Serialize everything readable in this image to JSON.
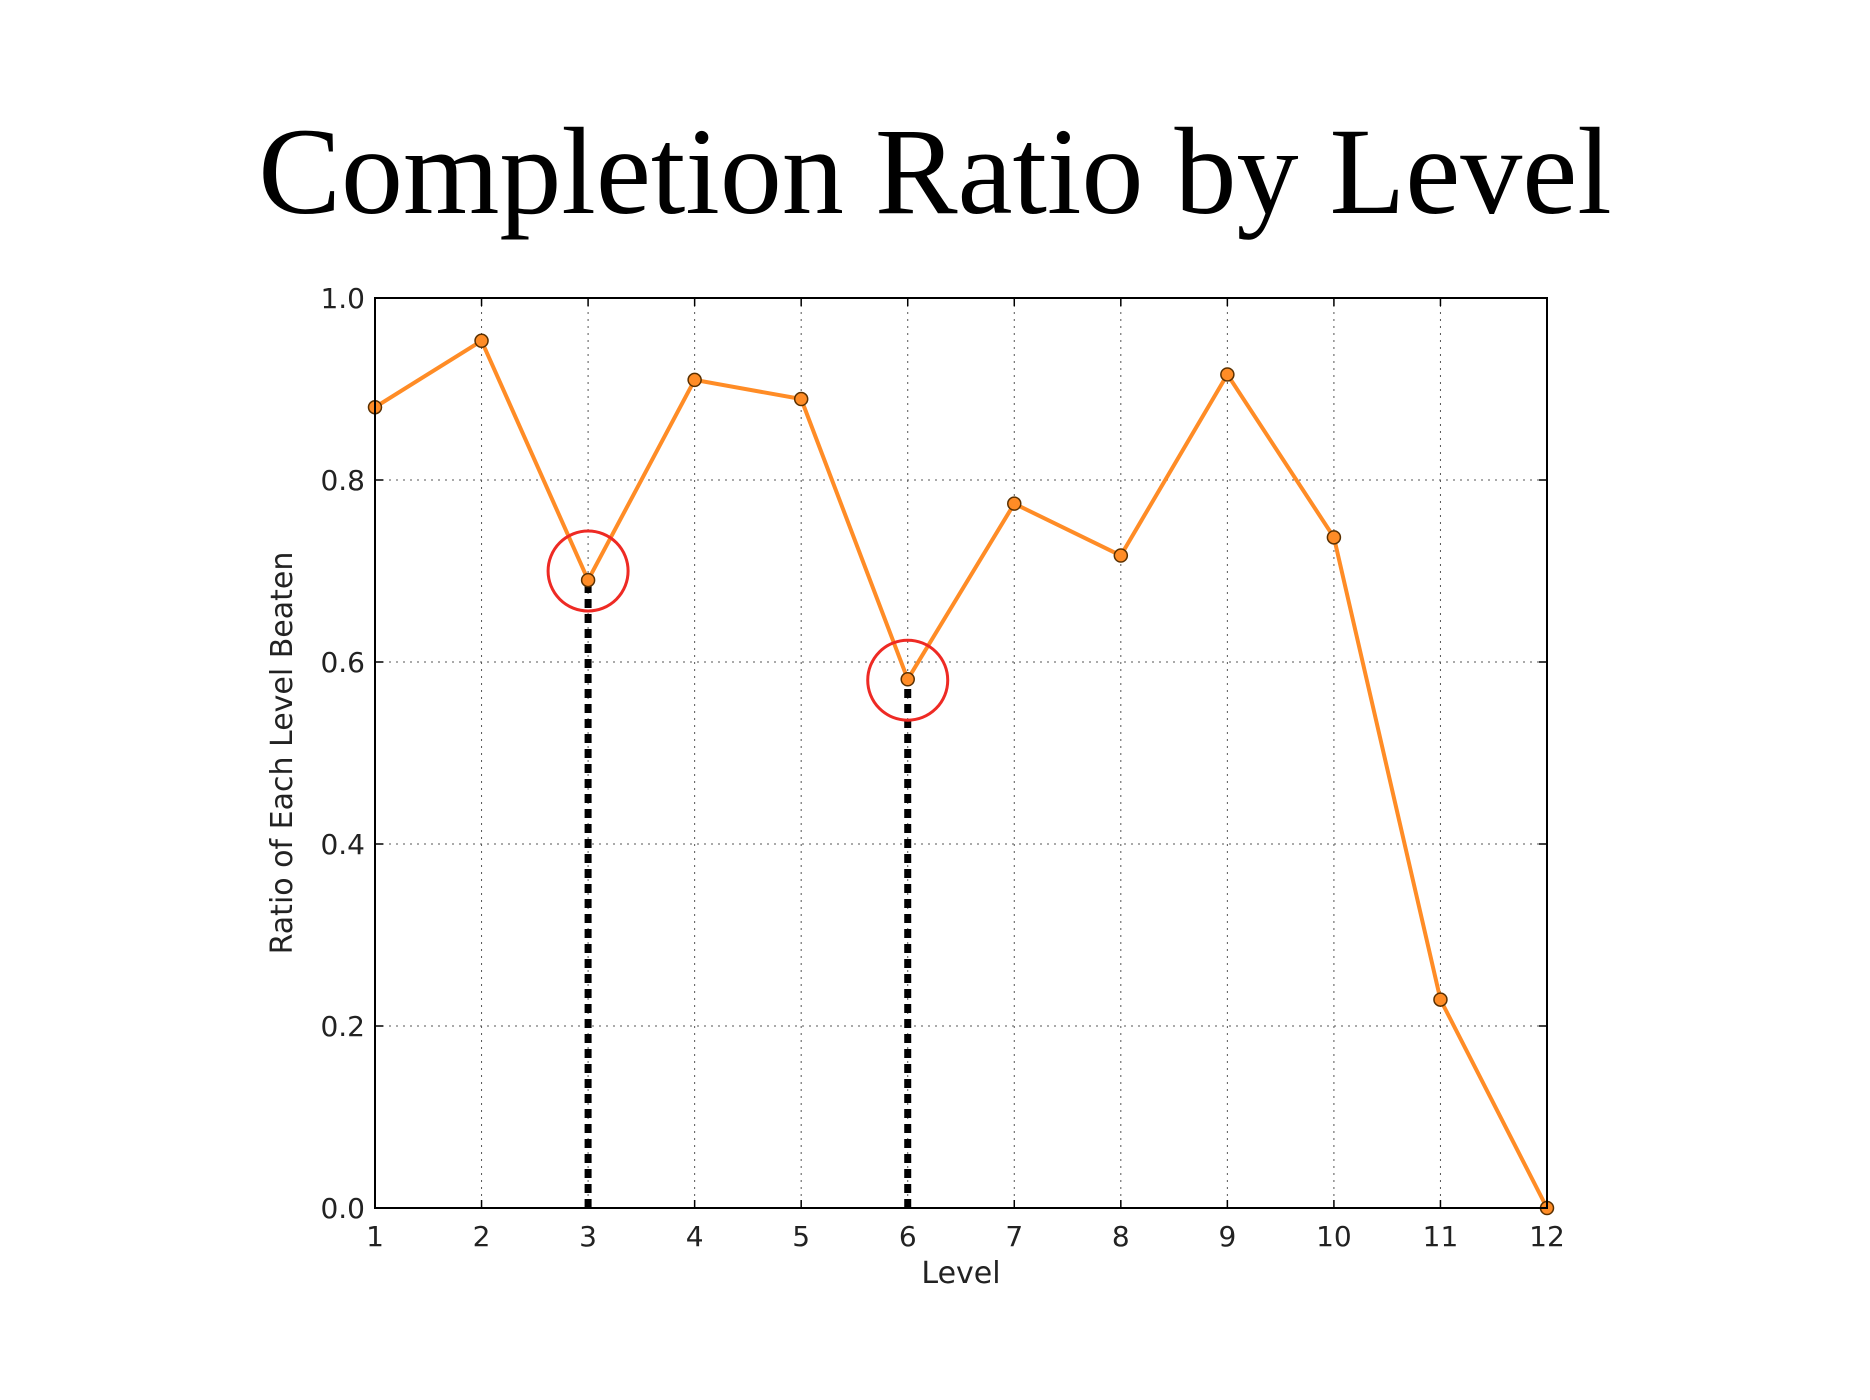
{
  "chart_data": {
    "type": "line",
    "title": "Completion Ratio by Level",
    "xlabel": "Level",
    "ylabel": "Ratio of Each Level Beaten",
    "xlim": [
      1,
      12
    ],
    "ylim": [
      0.0,
      1.0
    ],
    "x_ticks": [
      "1",
      "2",
      "3",
      "4",
      "5",
      "6",
      "7",
      "8",
      "9",
      "10",
      "11",
      "12"
    ],
    "y_ticks": [
      "0.0",
      "0.2",
      "0.4",
      "0.6",
      "0.8",
      "1.0"
    ],
    "grid": true,
    "series": [
      {
        "x": [
          1,
          2,
          3,
          4,
          5,
          6,
          7,
          8,
          9,
          10,
          11,
          12
        ],
        "values": [
          0.88,
          0.953,
          0.69,
          0.91,
          0.889,
          0.581,
          0.774,
          0.717,
          0.916,
          0.737,
          0.229,
          0.0
        ],
        "color": "#ff8c26",
        "marker_edge": "#5a3000"
      }
    ],
    "annotations": [
      {
        "type": "circle",
        "x": 3,
        "y": 0.7,
        "color": "#ee2a24"
      },
      {
        "type": "circle",
        "x": 6,
        "y": 0.58,
        "color": "#ee2a24"
      },
      {
        "type": "dashed-vertical",
        "x": 3,
        "from": 0.0,
        "to": 0.69,
        "color": "#000000"
      },
      {
        "type": "dashed-vertical",
        "x": 6,
        "from": 0.0,
        "to": 0.581,
        "color": "#000000"
      }
    ]
  }
}
